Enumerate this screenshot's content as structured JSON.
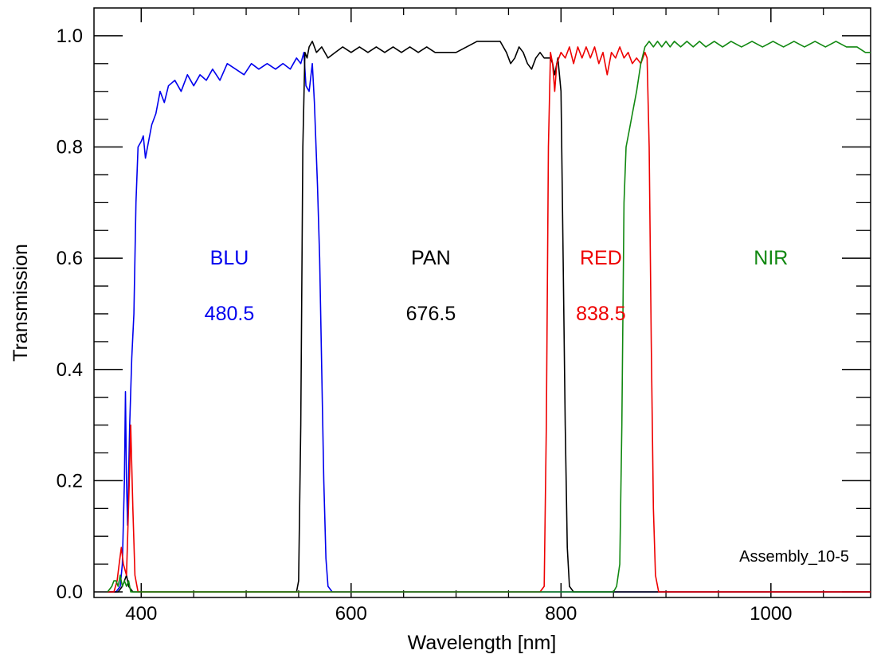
{
  "chart_data": {
    "type": "line",
    "title": "",
    "xlabel": "Wavelength [nm]",
    "ylabel": "Transmission",
    "xlim": [
      355,
      1095
    ],
    "ylim": [
      -0.01,
      1.05
    ],
    "x_ticks": [
      400,
      600,
      800,
      1000
    ],
    "x_tick_labels": [
      "400",
      "600",
      "800",
      "1000"
    ],
    "y_ticks": [
      0.0,
      0.2,
      0.4,
      0.6,
      0.8,
      1.0
    ],
    "y_tick_labels": [
      "0.0",
      "0.2",
      "0.4",
      "0.6",
      "0.8",
      "1.0"
    ],
    "grid": false,
    "annotation": "Assembly_10-5",
    "series": [
      {
        "name": "BLU",
        "center_label": "480.5",
        "color": "#0000ee",
        "points": [
          [
            368,
            0
          ],
          [
            376,
            0
          ],
          [
            380,
            0.01
          ],
          [
            382,
            0.05
          ],
          [
            384,
            0.2
          ],
          [
            385,
            0.36
          ],
          [
            386,
            0.2
          ],
          [
            387,
            0.12
          ],
          [
            389,
            0.3
          ],
          [
            391,
            0.42
          ],
          [
            393,
            0.5
          ],
          [
            395,
            0.7
          ],
          [
            397,
            0.8
          ],
          [
            400,
            0.81
          ],
          [
            402,
            0.82
          ],
          [
            404,
            0.78
          ],
          [
            406,
            0.8
          ],
          [
            410,
            0.84
          ],
          [
            414,
            0.86
          ],
          [
            418,
            0.9
          ],
          [
            422,
            0.88
          ],
          [
            426,
            0.91
          ],
          [
            432,
            0.92
          ],
          [
            438,
            0.9
          ],
          [
            444,
            0.93
          ],
          [
            450,
            0.91
          ],
          [
            456,
            0.93
          ],
          [
            462,
            0.92
          ],
          [
            468,
            0.94
          ],
          [
            475,
            0.92
          ],
          [
            482,
            0.95
          ],
          [
            490,
            0.94
          ],
          [
            498,
            0.93
          ],
          [
            505,
            0.95
          ],
          [
            512,
            0.94
          ],
          [
            520,
            0.95
          ],
          [
            528,
            0.94
          ],
          [
            535,
            0.95
          ],
          [
            542,
            0.94
          ],
          [
            548,
            0.96
          ],
          [
            552,
            0.95
          ],
          [
            555,
            0.97
          ],
          [
            557,
            0.91
          ],
          [
            560,
            0.9
          ],
          [
            563,
            0.95
          ],
          [
            565,
            0.88
          ],
          [
            568,
            0.73
          ],
          [
            570,
            0.6
          ],
          [
            572,
            0.4
          ],
          [
            574,
            0.2
          ],
          [
            576,
            0.06
          ],
          [
            578,
            0.01
          ],
          [
            582,
            0
          ],
          [
            720,
            0
          ],
          [
            780,
            0
          ],
          [
            870,
            0
          ],
          [
            930,
            0
          ],
          [
            1000,
            0
          ],
          [
            1095,
            0
          ]
        ]
      },
      {
        "name": "PAN",
        "center_label": "676.5",
        "color": "#000000",
        "points": [
          [
            368,
            0
          ],
          [
            378,
            0
          ],
          [
            382,
            0.01
          ],
          [
            384,
            0.02
          ],
          [
            386,
            0.03
          ],
          [
            388,
            0.01
          ],
          [
            392,
            0
          ],
          [
            548,
            0
          ],
          [
            550,
            0.02
          ],
          [
            552,
            0.3
          ],
          [
            554,
            0.8
          ],
          [
            556,
            0.97
          ],
          [
            558,
            0.96
          ],
          [
            560,
            0.98
          ],
          [
            563,
            0.99
          ],
          [
            567,
            0.97
          ],
          [
            572,
            0.98
          ],
          [
            578,
            0.96
          ],
          [
            585,
            0.97
          ],
          [
            592,
            0.98
          ],
          [
            600,
            0.97
          ],
          [
            608,
            0.98
          ],
          [
            616,
            0.97
          ],
          [
            624,
            0.98
          ],
          [
            632,
            0.97
          ],
          [
            640,
            0.98
          ],
          [
            648,
            0.97
          ],
          [
            656,
            0.98
          ],
          [
            664,
            0.97
          ],
          [
            672,
            0.98
          ],
          [
            680,
            0.97
          ],
          [
            690,
            0.97
          ],
          [
            700,
            0.97
          ],
          [
            710,
            0.98
          ],
          [
            720,
            0.99
          ],
          [
            728,
            0.99
          ],
          [
            736,
            0.99
          ],
          [
            742,
            0.99
          ],
          [
            748,
            0.97
          ],
          [
            752,
            0.95
          ],
          [
            756,
            0.96
          ],
          [
            760,
            0.98
          ],
          [
            764,
            0.97
          ],
          [
            768,
            0.95
          ],
          [
            772,
            0.94
          ],
          [
            776,
            0.96
          ],
          [
            780,
            0.97
          ],
          [
            784,
            0.96
          ],
          [
            788,
            0.96
          ],
          [
            790,
            0.96
          ],
          [
            792,
            0.95
          ],
          [
            794,
            0.93
          ],
          [
            797,
            0.96
          ],
          [
            800,
            0.9
          ],
          [
            802,
            0.6
          ],
          [
            804,
            0.3
          ],
          [
            806,
            0.08
          ],
          [
            808,
            0.01
          ],
          [
            812,
            0
          ],
          [
            1095,
            0
          ]
        ]
      },
      {
        "name": "RED",
        "center_label": "838.5",
        "color": "#ee0000",
        "points": [
          [
            368,
            0
          ],
          [
            374,
            0
          ],
          [
            377,
            0.02
          ],
          [
            379,
            0.05
          ],
          [
            381,
            0.08
          ],
          [
            383,
            0.05
          ],
          [
            386,
            0.03
          ],
          [
            389,
            0.22
          ],
          [
            390,
            0.3
          ],
          [
            392,
            0.15
          ],
          [
            394,
            0.03
          ],
          [
            397,
            0
          ],
          [
            780,
            0
          ],
          [
            784,
            0.01
          ],
          [
            786,
            0.3
          ],
          [
            788,
            0.8
          ],
          [
            790,
            0.97
          ],
          [
            792,
            0.95
          ],
          [
            794,
            0.9
          ],
          [
            796,
            0.95
          ],
          [
            800,
            0.97
          ],
          [
            804,
            0.96
          ],
          [
            808,
            0.98
          ],
          [
            812,
            0.95
          ],
          [
            816,
            0.98
          ],
          [
            820,
            0.96
          ],
          [
            824,
            0.98
          ],
          [
            828,
            0.96
          ],
          [
            832,
            0.98
          ],
          [
            836,
            0.95
          ],
          [
            840,
            0.97
          ],
          [
            844,
            0.93
          ],
          [
            848,
            0.97
          ],
          [
            852,
            0.96
          ],
          [
            856,
            0.98
          ],
          [
            860,
            0.96
          ],
          [
            864,
            0.97
          ],
          [
            868,
            0.95
          ],
          [
            872,
            0.96
          ],
          [
            876,
            0.95
          ],
          [
            880,
            0.97
          ],
          [
            882,
            0.96
          ],
          [
            884,
            0.8
          ],
          [
            886,
            0.45
          ],
          [
            888,
            0.15
          ],
          [
            890,
            0.03
          ],
          [
            893,
            0
          ],
          [
            1095,
            0
          ]
        ]
      },
      {
        "name": "NIR",
        "center_label": "",
        "color": "#118811",
        "points": [
          [
            368,
            0
          ],
          [
            372,
            0.01
          ],
          [
            374,
            0.02
          ],
          [
            376,
            0.02
          ],
          [
            378,
            0.01
          ],
          [
            380,
            0.03
          ],
          [
            382,
            0.01
          ],
          [
            384,
            0.02
          ],
          [
            386,
            0.01
          ],
          [
            388,
            0.02
          ],
          [
            390,
            0
          ],
          [
            850,
            0
          ],
          [
            853,
            0.01
          ],
          [
            856,
            0.05
          ],
          [
            858,
            0.3
          ],
          [
            860,
            0.7
          ],
          [
            862,
            0.8
          ],
          [
            865,
            0.83
          ],
          [
            868,
            0.86
          ],
          [
            872,
            0.9
          ],
          [
            876,
            0.95
          ],
          [
            880,
            0.98
          ],
          [
            884,
            0.99
          ],
          [
            888,
            0.98
          ],
          [
            892,
            0.99
          ],
          [
            896,
            0.98
          ],
          [
            900,
            0.99
          ],
          [
            904,
            0.98
          ],
          [
            908,
            0.99
          ],
          [
            914,
            0.98
          ],
          [
            920,
            0.99
          ],
          [
            926,
            0.98
          ],
          [
            932,
            0.99
          ],
          [
            938,
            0.98
          ],
          [
            946,
            0.99
          ],
          [
            954,
            0.98
          ],
          [
            962,
            0.99
          ],
          [
            972,
            0.98
          ],
          [
            982,
            0.99
          ],
          [
            992,
            0.98
          ],
          [
            1002,
            0.99
          ],
          [
            1012,
            0.98
          ],
          [
            1022,
            0.99
          ],
          [
            1032,
            0.98
          ],
          [
            1042,
            0.99
          ],
          [
            1052,
            0.98
          ],
          [
            1062,
            0.99
          ],
          [
            1072,
            0.98
          ],
          [
            1082,
            0.98
          ],
          [
            1090,
            0.97
          ],
          [
            1095,
            0.97
          ]
        ]
      }
    ]
  }
}
